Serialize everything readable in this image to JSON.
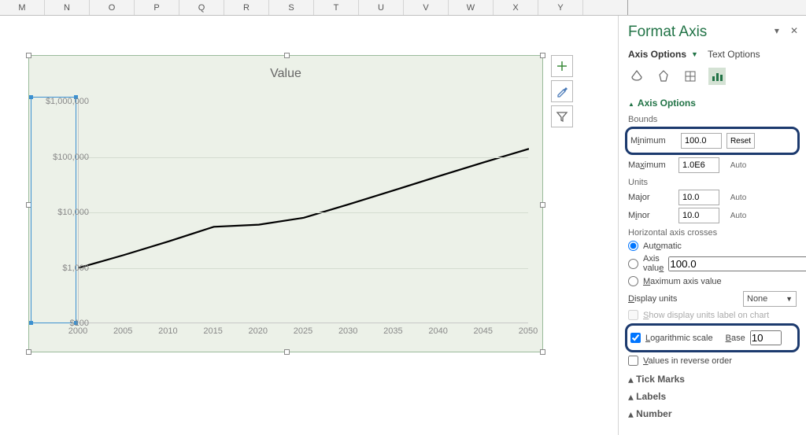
{
  "columns": [
    "M",
    "N",
    "O",
    "P",
    "Q",
    "R",
    "S",
    "T",
    "U",
    "V",
    "W",
    "X",
    "Y",
    ""
  ],
  "chart": {
    "title": "Value",
    "type": "line",
    "background_color": "#ecf1e8",
    "grid_color": "#d4dcd0",
    "series_color": "#000000",
    "line_width": 2.2,
    "x_values": [
      2000,
      2005,
      2010,
      2015,
      2020,
      2025,
      2030,
      2035,
      2040,
      2045,
      2050
    ],
    "y_values": [
      1000,
      1700,
      3000,
      5500,
      6000,
      8000,
      14000,
      25000,
      45000,
      80000,
      140000
    ],
    "y_scale": "log",
    "ylim": [
      100,
      1000000
    ],
    "y_ticks": [
      "$100",
      "$1,000",
      "$10,000",
      "$100,000",
      "$1,000,000"
    ],
    "x_ticks": [
      "2000",
      "2005",
      "2010",
      "2015",
      "2020",
      "2025",
      "2030",
      "2035",
      "2040",
      "2045",
      "2050"
    ],
    "xlim": [
      2000,
      2050
    ],
    "axis_label_color": "#888888",
    "axis_label_fontsize": 11
  },
  "chart_buttons": {
    "add": "+",
    "brush": "✎",
    "filter": "▽"
  },
  "panel": {
    "title": "Format Axis",
    "tabs": {
      "axis_options": "Axis Options",
      "text_options": "Text Options"
    },
    "section": "Axis Options",
    "bounds_label": "Bounds",
    "min_label": "Minimum",
    "min_value": "100.0",
    "reset_label": "Reset",
    "max_label": "Maximum",
    "max_value": "1.0E6",
    "auto_label": "Auto",
    "units_label": "Units",
    "major_label": "Major",
    "major_value": "10.0",
    "minor_label": "Minor",
    "minor_value": "10.0",
    "hcross_label": "Horizontal axis crosses",
    "hcross_auto": "Automatic",
    "hcross_value_label": "Axis value",
    "hcross_value": "100.0",
    "hcross_max": "Maximum axis value",
    "display_units_label": "Display units",
    "display_units_value": "None",
    "show_units_label": "Show display units label on chart",
    "log_label": "Logarithmic scale",
    "base_label": "Base",
    "base_value": "10",
    "reverse_label": "Values in reverse order",
    "tick_marks": "Tick Marks",
    "labels": "Labels",
    "number": "Number"
  }
}
